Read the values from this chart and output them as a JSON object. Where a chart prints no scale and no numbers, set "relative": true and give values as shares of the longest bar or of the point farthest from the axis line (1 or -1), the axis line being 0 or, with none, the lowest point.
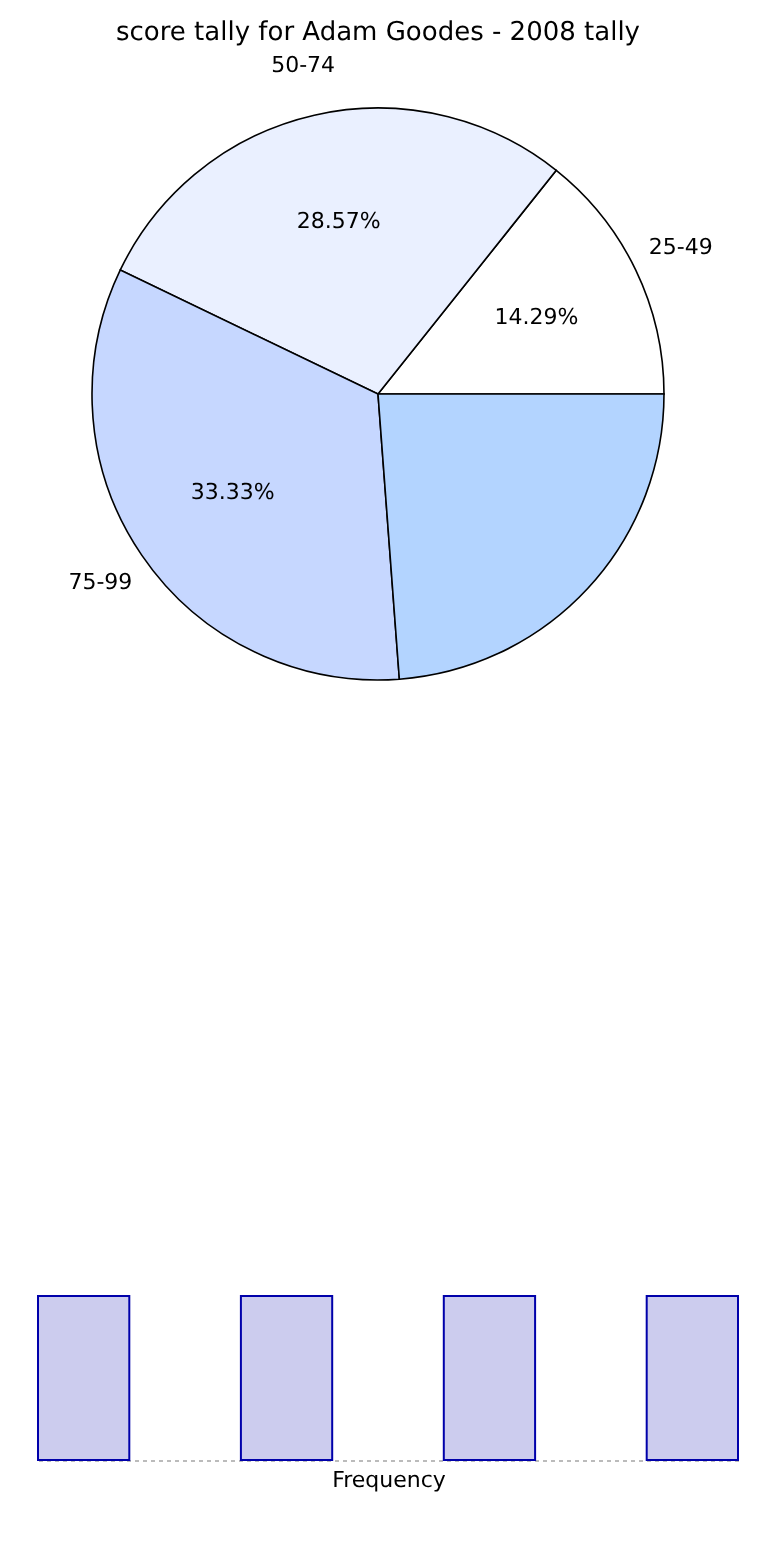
{
  "chart_data": [
    {
      "type": "pie",
      "title": "score tally for Adam Goodes - 2008 tally",
      "categories": [
        "25-49",
        "50-74",
        "75-99",
        null
      ],
      "values": [
        14.29,
        28.57,
        33.33,
        23.81
      ],
      "colors": [
        "#ffffff",
        "#eaf0ff",
        "#c6d7ff",
        "#b3d4ff"
      ],
      "value_labels": [
        "14.29%",
        "28.57%",
        "33.33%",
        null
      ],
      "legend": false
    },
    {
      "type": "bar",
      "relative": true,
      "categories": [
        null,
        null,
        null,
        null
      ],
      "values": [
        1,
        1,
        1,
        1
      ],
      "color": "#ccccee",
      "xlabel": "Frequency"
    }
  ]
}
